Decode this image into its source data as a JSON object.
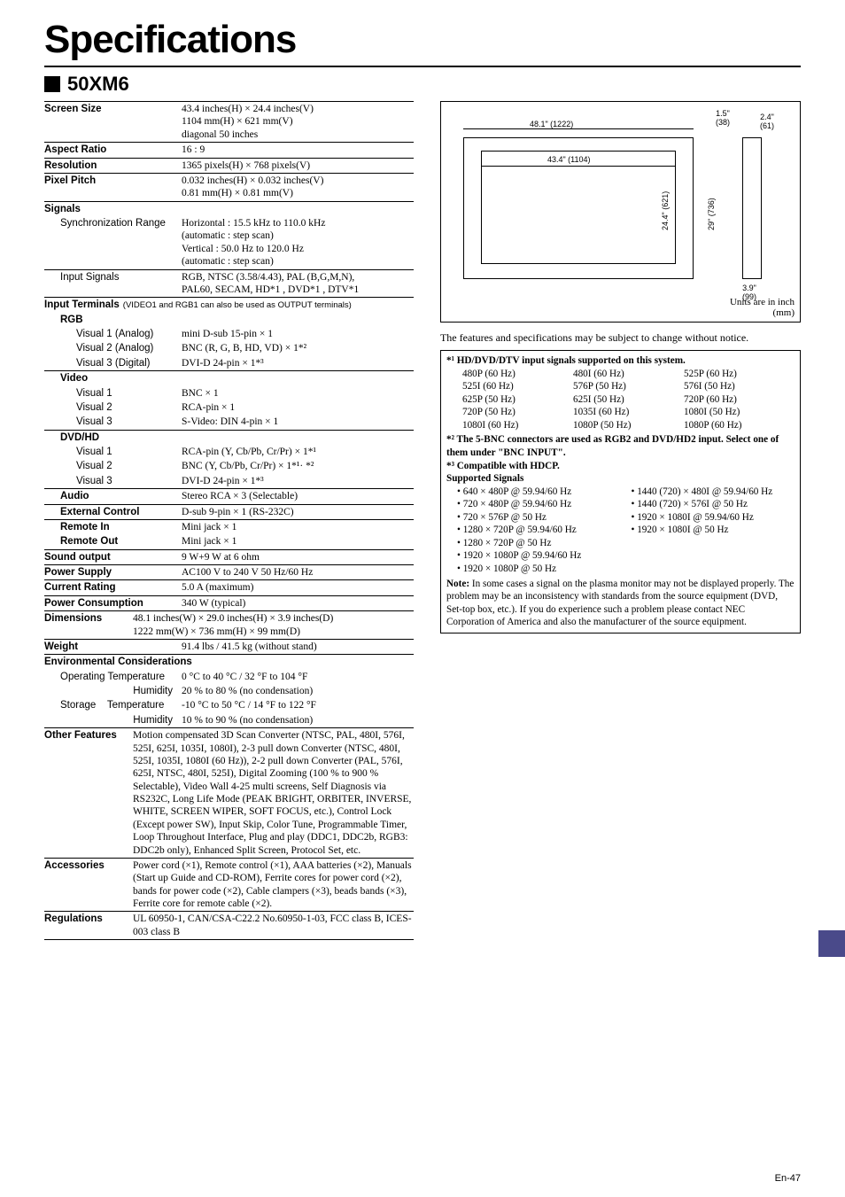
{
  "title": "Specifications",
  "model": "50XM6",
  "specs": {
    "screen_size": {
      "label": "Screen Size",
      "value": "43.4 inches(H) × 24.4 inches(V)\n1104 mm(H) × 621 mm(V)\ndiagonal 50 inches"
    },
    "aspect_ratio": {
      "label": "Aspect Ratio",
      "value": "16 : 9"
    },
    "resolution": {
      "label": "Resolution",
      "value": "1365 pixels(H) × 768 pixels(V)"
    },
    "pixel_pitch": {
      "label": "Pixel Pitch",
      "value": "0.032 inches(H) × 0.032 inches(V)\n0.81 mm(H) × 0.81 mm(V)"
    },
    "signals": {
      "label": "Signals"
    },
    "sync_range": {
      "label": "Synchronization Range",
      "value": "Horizontal : 15.5 kHz to 110.0 kHz\n(automatic : step scan)\nVertical : 50.0 Hz to 120.0 Hz\n(automatic : step scan)"
    },
    "input_signals": {
      "label": "Input Signals",
      "value": "RGB, NTSC (3.58/4.43), PAL (B,G,M,N),\nPAL60, SECAM, HD*1 , DVD*1 , DTV*1"
    },
    "input_terminals": {
      "label": "Input Terminals",
      "note": "(VIDEO1 and RGB1 can also be used as OUTPUT terminals)"
    },
    "rgb_head": "RGB",
    "rgb_v1": {
      "label": "Visual 1 (Analog)",
      "value": "mini D-sub 15-pin × 1"
    },
    "rgb_v2": {
      "label": "Visual 2 (Analog)",
      "value": "BNC (R, G, B, HD, VD) × 1*²"
    },
    "rgb_v3": {
      "label": "Visual 3 (Digital)",
      "value": "DVI-D 24-pin × 1*³"
    },
    "video_head": "Video",
    "vid_v1": {
      "label": "Visual 1",
      "value": "BNC × 1"
    },
    "vid_v2": {
      "label": "Visual 2",
      "value": "RCA-pin × 1"
    },
    "vid_v3": {
      "label": "Visual 3",
      "value": "S-Video: DIN 4-pin × 1"
    },
    "dvd_head": "DVD/HD",
    "dvd_v1": {
      "label": "Visual 1",
      "value": "RCA-pin (Y, Cb/Pb, Cr/Pr) × 1*¹"
    },
    "dvd_v2": {
      "label": "Visual 2",
      "value": "BNC (Y, Cb/Pb, Cr/Pr) × 1*¹· *²"
    },
    "dvd_v3": {
      "label": "Visual 3",
      "value": "DVI-D 24-pin × 1*³"
    },
    "audio": {
      "label": "Audio",
      "value": "Stereo RCA × 3 (Selectable)"
    },
    "ext_ctrl": {
      "label": "External Control",
      "value": "D-sub 9-pin × 1 (RS-232C)"
    },
    "remote_in": {
      "label": "Remote In",
      "value": "Mini jack × 1"
    },
    "remote_out": {
      "label": "Remote Out",
      "value": "Mini jack × 1"
    },
    "sound": {
      "label": "Sound output",
      "value": "9 W+9 W at 6 ohm"
    },
    "power": {
      "label": "Power Supply",
      "value": "AC100 V to 240 V 50 Hz/60 Hz"
    },
    "current": {
      "label": "Current Rating",
      "value": "5.0 A (maximum)"
    },
    "pcons": {
      "label": "Power Consumption",
      "value": "340 W (typical)"
    },
    "dims": {
      "label": "Dimensions",
      "value": "48.1 inches(W) × 29.0 inches(H) × 3.9 inches(D)\n1222 mm(W) × 736 mm(H) × 99 mm(D)"
    },
    "weight": {
      "label": "Weight",
      "value": "91.4 lbs / 41.5 kg  (without stand)"
    },
    "env": {
      "label": "Environmental Considerations"
    },
    "env_op_t": {
      "label": "Operating Temperature",
      "value": "0 °C to 40 °C / 32 °F to 104 °F"
    },
    "env_op_h": {
      "label": "Humidity",
      "value": "20 % to 80 % (no condensation)"
    },
    "env_st_t": {
      "label": "Storage    Temperature",
      "value": "-10 °C to 50 °C / 14 °F to 122 °F"
    },
    "env_st_h": {
      "label": "Humidity",
      "value": "10 % to 90 % (no condensation)"
    },
    "other": {
      "label": "Other Features",
      "value": "Motion compensated 3D Scan Converter (NTSC, PAL, 480I, 576I, 525I, 625I, 1035I, 1080I), 2-3 pull down Converter (NTSC, 480I, 525I, 1035I, 1080I (60 Hz)), 2-2 pull down Converter (PAL, 576I, 625I, NTSC, 480I, 525I), Digital Zooming (100 % to 900 % Selectable), Video Wall 4-25 multi screens, Self Diagnosis via RS232C, Long Life Mode (PEAK BRIGHT, ORBITER, INVERSE, WHITE, SCREEN WIPER, SOFT FOCUS, etc.), Control Lock (Except power SW), Input Skip, Color Tune, Programmable Timer, Loop Throughout Interface, Plug and play (DDC1, DDC2b, RGB3: DDC2b only), Enhanced Split Screen, Protocol Set, etc."
    },
    "accessories": {
      "label": "Accessories",
      "value": "Power cord (×1), Remote control (×1), AAA batteries (×2), Manuals (Start up Guide and CD-ROM), Ferrite cores for power cord (×2), bands for power code (×2), Cable clampers (×3), beads bands (×3), Ferrite core for remote cable (×2)."
    },
    "regs": {
      "label": "Regulations",
      "value": "UL 60950-1, CAN/CSA-C22.2 No.60950-1-03, FCC class B, ICES-003 class B"
    }
  },
  "diagram": {
    "w_label": "48.1\" (1222)",
    "screen_w": "43.4\" (1104)",
    "screen_h": "24.4\" (621)",
    "unit_h": "29\" (736)",
    "depth": "3.9\"\n(99)",
    "top1": "1.5\"\n(38)",
    "top2": "2.4\"\n(61)",
    "units": "Units are in inch\n(mm)"
  },
  "change_notice": "The features and specifications may be subject to change without notice.",
  "footnotes": {
    "f1_head": "*¹ HD/DVD/DTV input signals supported on this system.",
    "f1_rows": [
      [
        "480P (60 Hz)",
        "480I (60 Hz)",
        "525P (60 Hz)"
      ],
      [
        "525I (60 Hz)",
        "576P (50 Hz)",
        "576I (50 Hz)"
      ],
      [
        "625P (50 Hz)",
        "625I (50 Hz)",
        "720P (60 Hz)"
      ],
      [
        "720P (50 Hz)",
        "1035I (60 Hz)",
        "1080I (50 Hz)"
      ],
      [
        "1080I (60 Hz)",
        "1080P (50 Hz)",
        "1080P (60 Hz)"
      ]
    ],
    "f2": "*² The 5-BNC connectors are used  as RGB2 and DVD/HD2 input. Select one of them under \"BNC INPUT\".",
    "f3": "*³ Compatible with HDCP.",
    "sup_head": "Supported Signals",
    "sup_left": [
      "640 × 480P @ 59.94/60 Hz",
      "720 × 480P @ 59.94/60 Hz",
      "720 × 576P @ 50 Hz",
      "1280 × 720P @ 59.94/60 Hz",
      "1280 × 720P @ 50 Hz",
      "1920 × 1080P @ 59.94/60 Hz",
      "1920 × 1080P @ 50 Hz"
    ],
    "sup_right": [
      "1440 (720) × 480I @ 59.94/60 Hz",
      "1440 (720) × 576I @ 50 Hz",
      "1920 × 1080I @ 59.94/60 Hz",
      "1920 × 1080I @ 50 Hz"
    ],
    "note": "Note: In some cases a signal on the plasma monitor may not be displayed properly. The problem may be an inconsistency with standards from the source equipment (DVD, Set-top box, etc.). If you do experience such a problem please contact NEC Corporation of America and also the manufacturer of the source equipment."
  },
  "page_footer": "En-47"
}
